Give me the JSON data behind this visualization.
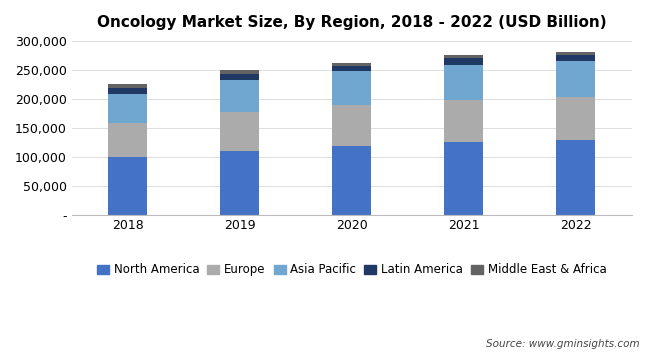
{
  "title": "Oncology Market Size, By Region, 2018 - 2022 (USD Billion)",
  "years": [
    "2018",
    "2019",
    "2020",
    "2021",
    "2022"
  ],
  "series": [
    {
      "name": "North America",
      "values": [
        100000,
        110000,
        118000,
        125000,
        128000
      ],
      "color": "#4472C4"
    },
    {
      "name": "Europe",
      "values": [
        58000,
        68000,
        72000,
        73000,
        75000
      ],
      "color": "#ABABAB"
    },
    {
      "name": "Asia Pacific",
      "values": [
        50000,
        55000,
        58000,
        60000,
        62000
      ],
      "color": "#70A7D0"
    },
    {
      "name": "Latin America",
      "values": [
        10000,
        9000,
        8000,
        12000,
        11000
      ],
      "color": "#1F3864"
    },
    {
      "name": "Middle East & Africa",
      "values": [
        7000,
        7000,
        5000,
        5000,
        5000
      ],
      "color": "#636363"
    }
  ],
  "ylim": [
    0,
    300000
  ],
  "yticks": [
    0,
    50000,
    100000,
    150000,
    200000,
    250000,
    300000
  ],
  "ytick_labels": [
    "-",
    "50,000",
    "100,000",
    "150,000",
    "200,000",
    "250,000",
    "300,000"
  ],
  "source_text": "Source: www.gminsights.com",
  "background_color": "#FFFFFF",
  "bar_width": 0.35,
  "title_fontsize": 11,
  "tick_fontsize": 9,
  "legend_fontsize": 8.5
}
